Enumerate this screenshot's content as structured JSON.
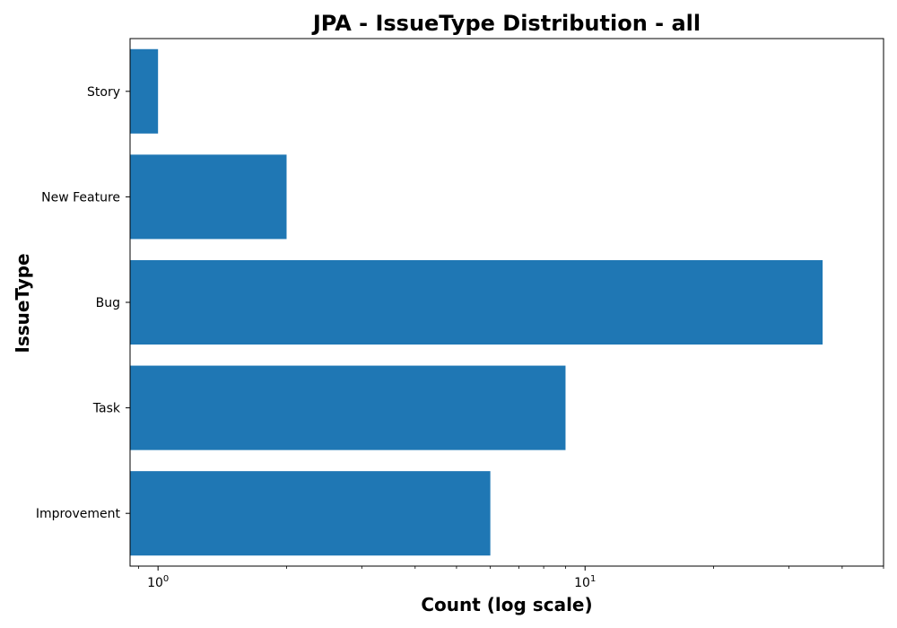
{
  "chart_data": {
    "type": "bar",
    "orientation": "horizontal",
    "title": "JPA - IssueType Distribution - all",
    "xlabel": "Count (log scale)",
    "ylabel": "IssueType",
    "xscale": "log",
    "xlim": [
      0.86,
      50
    ],
    "categories": [
      "Story",
      "New Feature",
      "Bug",
      "Task",
      "Improvement"
    ],
    "values": [
      1,
      2,
      36,
      9,
      6
    ],
    "bar_color": "#1f77b4",
    "x_ticks": [
      {
        "value": 1,
        "base": "10",
        "exponent": "0"
      },
      {
        "value": 10,
        "base": "10",
        "exponent": "1"
      }
    ],
    "grid": false,
    "legend": "none"
  }
}
